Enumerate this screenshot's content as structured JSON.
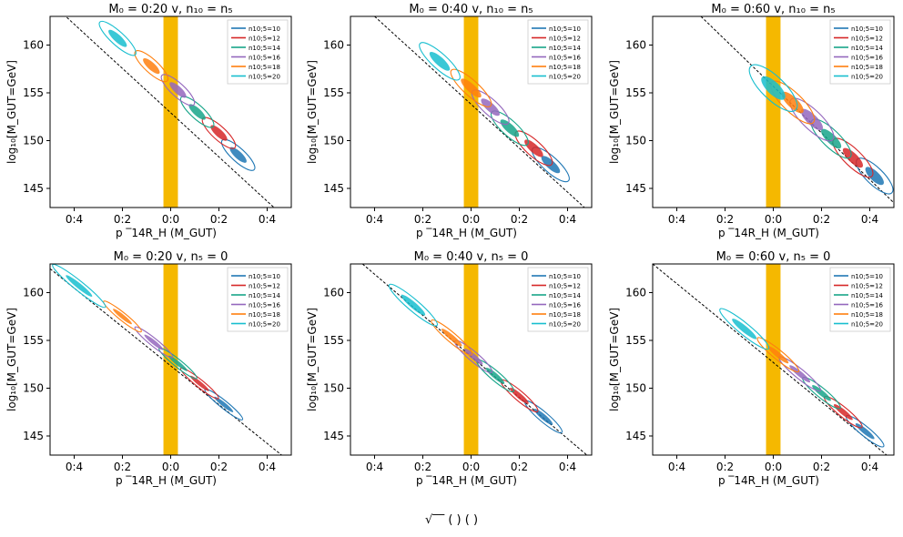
{
  "figure": {
    "caption_fragment": "√‾‾  (        )          (                  )"
  },
  "legend_colors": {
    "n10_5_10": "#1f77b4",
    "n10_5_12": "#d62728",
    "n10_5_14": "#17a589",
    "n10_5_16": "#9467bd",
    "n10_5_18": "#ff7f0e",
    "n10_5_20": "#17becf",
    "band": "#f5b800"
  },
  "chart_data": [
    {
      "type": "scatter",
      "title": "M₀ = 0:20   v,  n₁₀ = n₅",
      "xlabel": "p  ‾14R_H (M_GUT)",
      "ylabel": "log₁₀[M_GUT=GeV]",
      "x_tick_labels": [
        "0:4",
        "0:2",
        "0:0",
        "0:2",
        "0:4"
      ],
      "x_ticks": [
        -0.4,
        -0.2,
        0.0,
        0.2,
        0.4
      ],
      "y_tick_labels": [
        "145",
        "150",
        "155",
        "160"
      ],
      "y_ticks": [
        145,
        150,
        155,
        160
      ],
      "xlim": [
        -0.5,
        0.5
      ],
      "ylim": [
        143,
        163
      ],
      "band": [
        -0.03,
        0.03
      ],
      "reference_line": [
        [
          -0.5,
          164.5
        ],
        [
          0.45,
          142.5
        ]
      ],
      "legend": [
        "n10;5=10",
        "n10;5=12",
        "n10;5=14",
        "n10;5=16",
        "n10;5=18",
        "n10;5=20"
      ],
      "series": [
        {
          "name": "n10;5=10",
          "contours": [
            {
              "cx": 0.28,
              "cy": 148.5,
              "rx": 0.09,
              "ry": 0.7
            }
          ]
        },
        {
          "name": "n10;5=12",
          "contours": [
            {
              "cx": 0.2,
              "cy": 150.8,
              "rx": 0.09,
              "ry": 0.7
            }
          ]
        },
        {
          "name": "n10;5=14",
          "contours": [
            {
              "cx": 0.11,
              "cy": 153.0,
              "rx": 0.09,
              "ry": 0.7
            }
          ]
        },
        {
          "name": "n10;5=16",
          "contours": [
            {
              "cx": 0.03,
              "cy": 155.3,
              "rx": 0.09,
              "ry": 0.7
            }
          ]
        },
        {
          "name": "n10;5=18",
          "contours": [
            {
              "cx": -0.08,
              "cy": 157.8,
              "rx": 0.09,
              "ry": 0.7
            }
          ]
        },
        {
          "name": "n10;5=20",
          "contours": [
            {
              "cx": -0.22,
              "cy": 160.7,
              "rx": 0.1,
              "ry": 0.7
            }
          ]
        }
      ]
    },
    {
      "type": "scatter",
      "title": "M₀ = 0:40   v,  n₁₀ = n₅",
      "xlabel": "p  ‾14R_H (M_GUT)",
      "ylabel": "log₁₀[M_GUT=GeV]",
      "x_tick_labels": [
        "0:4",
        "0:2",
        "0:0",
        "0:2",
        "0:4"
      ],
      "x_ticks": [
        -0.4,
        -0.2,
        0.0,
        0.2,
        0.4
      ],
      "y_tick_labels": [
        "145",
        "150",
        "155",
        "160"
      ],
      "y_ticks": [
        145,
        150,
        155,
        160
      ],
      "xlim": [
        -0.5,
        0.5
      ],
      "ylim": [
        143,
        163
      ],
      "band": [
        -0.03,
        0.03
      ],
      "reference_line": [
        [
          -0.4,
          163
        ],
        [
          0.47,
          143
        ]
      ],
      "legend": [
        "n10;5=10",
        "n10;5=12",
        "n10;5=14",
        "n10;5=16",
        "n10;5=18",
        "n10;5=20"
      ],
      "series": [
        {
          "name": "n10;5=10",
          "contours": [
            {
              "cx": 0.33,
              "cy": 147.5,
              "rx": 0.1,
              "ry": 0.8
            }
          ]
        },
        {
          "name": "n10;5=12",
          "contours": [
            {
              "cx": 0.26,
              "cy": 149.2,
              "rx": 0.1,
              "ry": 0.8
            }
          ]
        },
        {
          "name": "n10;5=14",
          "contours": [
            {
              "cx": 0.16,
              "cy": 151.3,
              "rx": 0.1,
              "ry": 0.8
            }
          ]
        },
        {
          "name": "n10;5=16",
          "contours": [
            {
              "cx": 0.08,
              "cy": 153.5,
              "rx": 0.1,
              "ry": 0.8
            }
          ]
        },
        {
          "name": "n10;5=18",
          "contours": [
            {
              "cx": 0.0,
              "cy": 155.5,
              "rx": 0.11,
              "ry": 0.8
            }
          ]
        },
        {
          "name": "n10;5=20",
          "contours": [
            {
              "cx": -0.13,
              "cy": 158.3,
              "rx": 0.11,
              "ry": 0.8
            }
          ]
        }
      ]
    },
    {
      "type": "scatter",
      "title": "M₀ = 0:60   v,  n₁₀ = n₅",
      "xlabel": "p  ‾14R_H (M_GUT)",
      "ylabel": "log₁₀[M_GUT=GeV]",
      "x_tick_labels": [
        "0:4",
        "0:2",
        "0:0",
        "0:2",
        "0:4"
      ],
      "x_ticks": [
        -0.4,
        -0.2,
        0.0,
        0.2,
        0.4
      ],
      "y_tick_labels": [
        "145",
        "150",
        "155",
        "160"
      ],
      "y_ticks": [
        145,
        150,
        155,
        160
      ],
      "xlim": [
        -0.5,
        0.5
      ],
      "ylim": [
        143,
        163
      ],
      "band": [
        -0.03,
        0.03
      ],
      "reference_line": [
        [
          -0.3,
          163
        ],
        [
          0.52,
          143
        ]
      ],
      "legend": [
        "n10;5=10",
        "n10;5=12",
        "n10;5=14",
        "n10;5=16",
        "n10;5=18",
        "n10;5=20"
      ],
      "series": [
        {
          "name": "n10;5=10",
          "contours": [
            {
              "cx": 0.42,
              "cy": 146.3,
              "rx": 0.1,
              "ry": 0.9
            }
          ]
        },
        {
          "name": "n10;5=12",
          "contours": [
            {
              "cx": 0.33,
              "cy": 148.2,
              "rx": 0.11,
              "ry": 0.9
            }
          ]
        },
        {
          "name": "n10;5=14",
          "contours": [
            {
              "cx": 0.24,
              "cy": 150.2,
              "rx": 0.11,
              "ry": 0.9
            }
          ]
        },
        {
          "name": "n10;5=16",
          "contours": [
            {
              "cx": 0.16,
              "cy": 152.2,
              "rx": 0.12,
              "ry": 1.0
            }
          ]
        },
        {
          "name": "n10;5=18",
          "contours": [
            {
              "cx": 0.08,
              "cy": 154.0,
              "rx": 0.12,
              "ry": 1.0
            }
          ]
        },
        {
          "name": "n10;5=20",
          "contours": [
            {
              "cx": 0.0,
              "cy": 155.5,
              "rx": 0.13,
              "ry": 1.2
            }
          ]
        }
      ]
    },
    {
      "type": "scatter",
      "title": "M₀ = 0:20   v,  n₅ = 0",
      "xlabel": "p  ‾14R_H (M_GUT)",
      "ylabel": "log₁₀[M_GUT=GeV]",
      "x_tick_labels": [
        "0:4",
        "0:2",
        "0:0",
        "0:2",
        "0:4"
      ],
      "x_ticks": [
        -0.4,
        -0.2,
        0.0,
        0.2,
        0.4
      ],
      "y_tick_labels": [
        "145",
        "150",
        "155",
        "160"
      ],
      "y_ticks": [
        145,
        150,
        155,
        160
      ],
      "xlim": [
        -0.5,
        0.5
      ],
      "ylim": [
        143,
        163
      ],
      "band": [
        -0.03,
        0.03
      ],
      "reference_line": [
        [
          -0.5,
          162.5
        ],
        [
          0.46,
          143
        ]
      ],
      "legend": [
        "n10;5=10",
        "n10;5=12",
        "n10;5=14",
        "n10;5=16",
        "n10;5=18",
        "n10;5=20"
      ],
      "series": [
        {
          "name": "n10;5=10",
          "contours": [
            {
              "cx": 0.22,
              "cy": 148.3,
              "rx": 0.1,
              "ry": 0.4
            }
          ]
        },
        {
          "name": "n10;5=12",
          "contours": [
            {
              "cx": 0.12,
              "cy": 150.5,
              "rx": 0.1,
              "ry": 0.4
            }
          ]
        },
        {
          "name": "n10;5=14",
          "contours": [
            {
              "cx": 0.03,
              "cy": 152.6,
              "rx": 0.1,
              "ry": 0.4
            }
          ]
        },
        {
          "name": "n10;5=16",
          "contours": [
            {
              "cx": -0.07,
              "cy": 154.8,
              "rx": 0.1,
              "ry": 0.4
            }
          ]
        },
        {
          "name": "n10;5=18",
          "contours": [
            {
              "cx": -0.2,
              "cy": 157.5,
              "rx": 0.1,
              "ry": 0.4
            }
          ]
        },
        {
          "name": "n10;5=20",
          "contours": [
            {
              "cx": -0.38,
              "cy": 160.7,
              "rx": 0.14,
              "ry": 0.5
            }
          ]
        }
      ]
    },
    {
      "type": "scatter",
      "title": "M₀ = 0:40   v,  n₅ = 0",
      "xlabel": "p  ‾14R_H (M_GUT)",
      "ylabel": "log₁₀[M_GUT=GeV]",
      "x_tick_labels": [
        "0:4",
        "0:2",
        "0:0",
        "0:2",
        "0:4"
      ],
      "x_ticks": [
        -0.4,
        -0.2,
        0.0,
        0.2,
        0.4
      ],
      "y_tick_labels": [
        "145",
        "150",
        "155",
        "160"
      ],
      "y_ticks": [
        145,
        150,
        155,
        160
      ],
      "xlim": [
        -0.5,
        0.5
      ],
      "ylim": [
        143,
        163
      ],
      "band": [
        -0.03,
        0.03
      ],
      "reference_line": [
        [
          -0.45,
          163
        ],
        [
          0.48,
          143
        ]
      ],
      "legend": [
        "n10;5=10",
        "n10;5=12",
        "n10;5=14",
        "n10;5=16",
        "n10;5=18",
        "n10;5=20"
      ],
      "series": [
        {
          "name": "n10;5=10",
          "contours": [
            {
              "cx": 0.3,
              "cy": 147.0,
              "rx": 0.1,
              "ry": 0.5
            }
          ]
        },
        {
          "name": "n10;5=12",
          "contours": [
            {
              "cx": 0.2,
              "cy": 149.2,
              "rx": 0.1,
              "ry": 0.5
            }
          ]
        },
        {
          "name": "n10;5=14",
          "contours": [
            {
              "cx": 0.1,
              "cy": 151.3,
              "rx": 0.1,
              "ry": 0.5
            }
          ]
        },
        {
          "name": "n10;5=16",
          "contours": [
            {
              "cx": 0.01,
              "cy": 153.3,
              "rx": 0.1,
              "ry": 0.5
            }
          ]
        },
        {
          "name": "n10;5=18",
          "contours": [
            {
              "cx": -0.08,
              "cy": 155.3,
              "rx": 0.11,
              "ry": 0.5
            }
          ]
        },
        {
          "name": "n10;5=20",
          "contours": [
            {
              "cx": -0.24,
              "cy": 158.7,
              "rx": 0.13,
              "ry": 0.6
            }
          ]
        }
      ]
    },
    {
      "type": "scatter",
      "title": "M₀ = 0:60   v,  n₅ = 0",
      "xlabel": "p  ‾14R_H (M_GUT)",
      "ylabel": "log₁₀[M_GUT=GeV]",
      "x_tick_labels": [
        "0:4",
        "0:2",
        "0:0",
        "0:2",
        "0:4"
      ],
      "x_ticks": [
        -0.4,
        -0.2,
        0.0,
        0.2,
        0.4
      ],
      "y_tick_labels": [
        "145",
        "150",
        "155",
        "160"
      ],
      "y_ticks": [
        145,
        150,
        155,
        160
      ],
      "xlim": [
        -0.5,
        0.5
      ],
      "ylim": [
        143,
        163
      ],
      "band": [
        -0.03,
        0.03
      ],
      "reference_line": [
        [
          -0.5,
          163
        ],
        [
          0.47,
          143
        ]
      ],
      "legend": [
        "n10;5=10",
        "n10;5=12",
        "n10;5=14",
        "n10;5=16",
        "n10;5=18",
        "n10;5=20"
      ],
      "series": [
        {
          "name": "n10;5=10",
          "contours": [
            {
              "cx": 0.38,
              "cy": 145.5,
              "rx": 0.1,
              "ry": 0.5
            }
          ]
        },
        {
          "name": "n10;5=12",
          "contours": [
            {
              "cx": 0.29,
              "cy": 147.5,
              "rx": 0.1,
              "ry": 0.5
            }
          ]
        },
        {
          "name": "n10;5=14",
          "contours": [
            {
              "cx": 0.2,
              "cy": 149.5,
              "rx": 0.1,
              "ry": 0.5
            }
          ]
        },
        {
          "name": "n10;5=16",
          "contours": [
            {
              "cx": 0.11,
              "cy": 151.5,
              "rx": 0.11,
              "ry": 0.5
            }
          ]
        },
        {
          "name": "n10;5=18",
          "contours": [
            {
              "cx": 0.02,
              "cy": 153.5,
              "rx": 0.11,
              "ry": 0.5
            }
          ]
        },
        {
          "name": "n10;5=20",
          "contours": [
            {
              "cx": -0.12,
              "cy": 156.2,
              "rx": 0.13,
              "ry": 0.6
            }
          ]
        }
      ]
    }
  ]
}
